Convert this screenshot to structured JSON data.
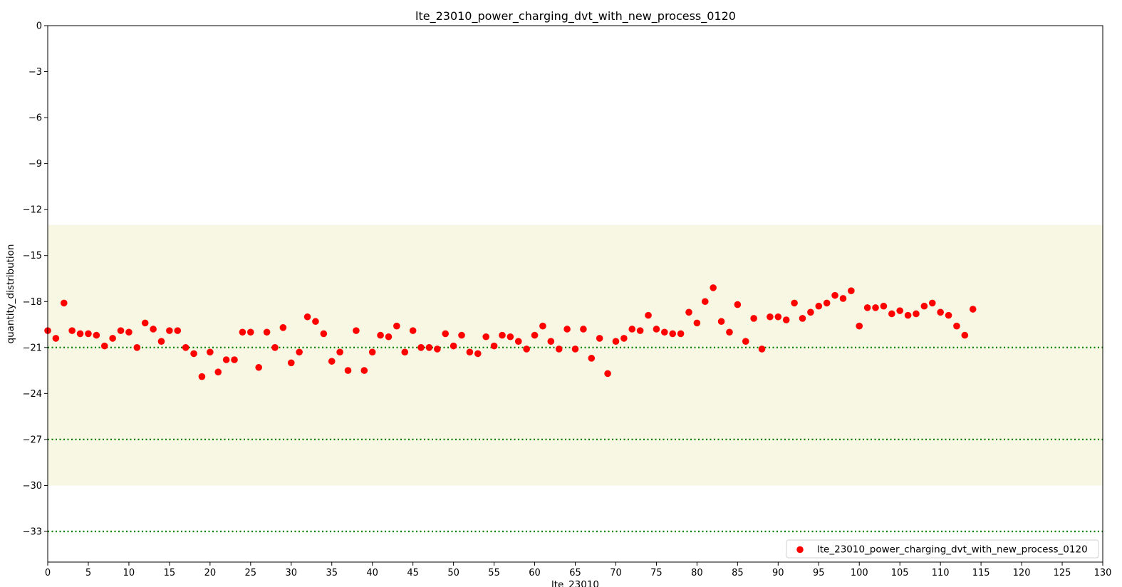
{
  "chart_data": {
    "type": "scatter",
    "title": "lte_23010_power_charging_dvt_with_new_process_0120",
    "xlabel": "lte_23010",
    "ylabel": "quantity_distribution",
    "xlim": [
      0,
      130
    ],
    "ylim": [
      -35,
      0
    ],
    "x_ticks": [
      0,
      5,
      10,
      15,
      20,
      25,
      30,
      35,
      40,
      45,
      50,
      55,
      60,
      65,
      70,
      75,
      80,
      85,
      90,
      95,
      100,
      105,
      110,
      115,
      120,
      125,
      130
    ],
    "y_ticks": [
      0,
      -3,
      -6,
      -9,
      -12,
      -15,
      -18,
      -21,
      -24,
      -27,
      -30,
      -33
    ],
    "y_tick_labels": [
      "0",
      "−3",
      "−6",
      "−9",
      "−12",
      "−15",
      "−18",
      "−21",
      "−24",
      "−27",
      "−30",
      "−33"
    ],
    "shaded_band": {
      "y_from": -30,
      "y_to": -13,
      "color": "#f8f7e3"
    },
    "reference_lines": [
      {
        "y": -21,
        "color": "#008000",
        "style": "dotted"
      },
      {
        "y": -27,
        "color": "#008000",
        "style": "dotted"
      },
      {
        "y": -33,
        "color": "#008000",
        "style": "dotted"
      }
    ],
    "legend": {
      "position": "lower-right",
      "entries": [
        "lte_23010_power_charging_dvt_with_new_process_0120"
      ]
    },
    "grid": false,
    "series": [
      {
        "name": "lte_23010_power_charging_dvt_with_new_process_0120",
        "color": "#ff0000",
        "x": [
          0,
          1,
          2,
          3,
          4,
          5,
          6,
          7,
          8,
          9,
          10,
          11,
          12,
          13,
          14,
          15,
          16,
          17,
          18,
          19,
          20,
          21,
          22,
          23,
          24,
          25,
          26,
          27,
          28,
          29,
          30,
          31,
          32,
          33,
          34,
          35,
          36,
          37,
          38,
          39,
          40,
          41,
          42,
          43,
          44,
          45,
          46,
          47,
          48,
          49,
          50,
          51,
          52,
          53,
          54,
          55,
          56,
          57,
          58,
          59,
          60,
          61,
          62,
          63,
          64,
          65,
          66,
          67,
          68,
          69,
          70,
          71,
          72,
          73,
          74,
          75,
          76,
          77,
          78,
          79,
          80,
          81,
          82,
          83,
          84,
          85,
          86,
          87,
          88,
          89,
          90,
          91,
          92,
          93,
          94,
          95,
          96,
          97,
          98,
          99,
          100,
          101,
          102,
          103,
          104,
          105,
          106,
          107,
          108,
          109,
          110,
          111,
          112,
          113,
          114
        ],
        "y": [
          -19.9,
          -20.4,
          -18.1,
          -19.9,
          -20.1,
          -20.1,
          -20.2,
          -20.9,
          -20.4,
          -19.9,
          -20.0,
          -21.0,
          -19.4,
          -19.8,
          -20.6,
          -19.9,
          -19.9,
          -21.0,
          -21.4,
          -22.9,
          -21.3,
          -22.6,
          -21.8,
          -21.8,
          -20.0,
          -20.0,
          -22.3,
          -20.0,
          -21.0,
          -19.7,
          -22.0,
          -21.3,
          -19.0,
          -19.3,
          -20.1,
          -21.9,
          -21.3,
          -22.5,
          -19.9,
          -22.5,
          -21.3,
          -20.2,
          -20.3,
          -19.6,
          -21.3,
          -19.9,
          -21.0,
          -21.0,
          -21.1,
          -20.1,
          -20.9,
          -20.2,
          -21.3,
          -21.4,
          -20.3,
          -20.9,
          -20.2,
          -20.3,
          -20.6,
          -21.1,
          -20.2,
          -19.6,
          -20.6,
          -21.1,
          -19.8,
          -21.1,
          -19.8,
          -21.7,
          -20.4,
          -22.7,
          -20.6,
          -20.4,
          -19.8,
          -19.9,
          -18.9,
          -19.8,
          -20.0,
          -20.1,
          -20.1,
          -18.7,
          -19.4,
          -18.0,
          -17.1,
          -19.3,
          -20.0,
          -18.2,
          -20.6,
          -19.1,
          -21.1,
          -19.0,
          -19.0,
          -19.2,
          -18.1,
          -19.1,
          -18.7,
          -18.3,
          -18.1,
          -17.6,
          -17.8,
          -17.3,
          -19.6,
          -18.4,
          -18.4,
          -18.3,
          -18.8,
          -18.6,
          -18.9,
          -18.8,
          -18.3,
          -18.1,
          -18.7,
          -18.9,
          -19.6,
          -20.2,
          -18.5
        ]
      }
    ]
  }
}
